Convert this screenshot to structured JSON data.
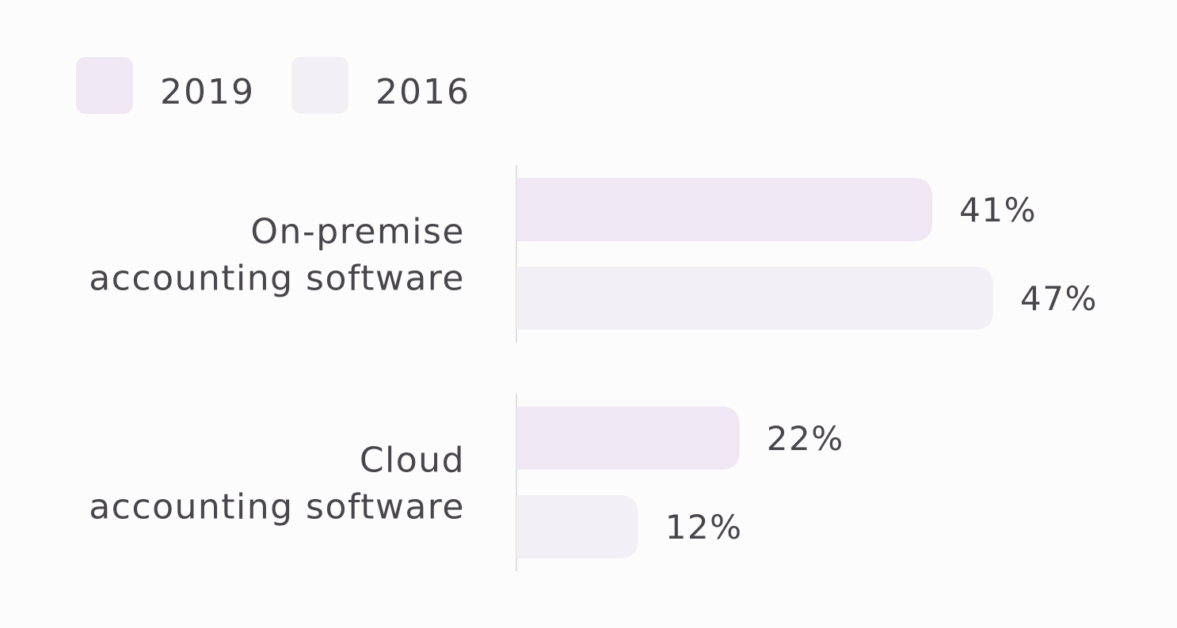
{
  "chart_data": {
    "type": "bar",
    "orientation": "horizontal",
    "categories": [
      [
        "On-premise",
        "accounting software"
      ],
      [
        "Cloud",
        "accounting software"
      ]
    ],
    "series": [
      {
        "name": "2019",
        "values": [
          41,
          22
        ],
        "color": "#efe7f4"
      },
      {
        "name": "2016",
        "values": [
          47,
          12
        ],
        "color": "#f2f0f4"
      }
    ],
    "value_suffix": "%",
    "xlim": [
      0,
      47
    ],
    "title": "",
    "xlabel": "",
    "ylabel": "",
    "legend": "top-left",
    "grid": false
  }
}
